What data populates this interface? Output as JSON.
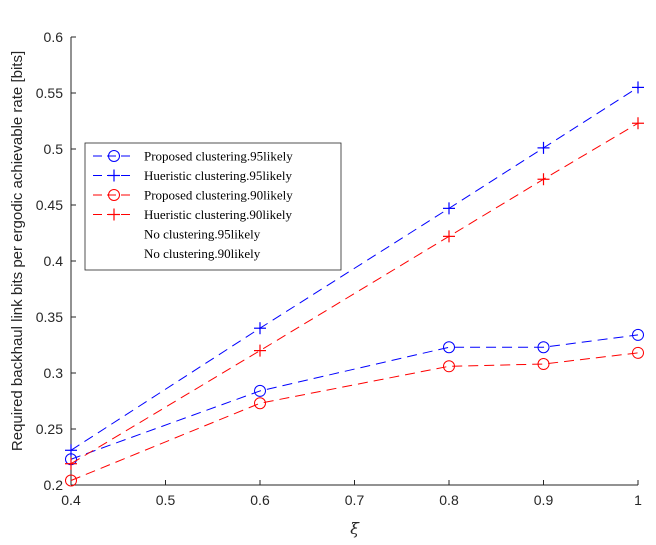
{
  "chart_data": {
    "type": "line",
    "title": "",
    "xlabel": "ξ",
    "ylabel": "Required backhaul link bits per ergodic achievable rate [bits]",
    "xlim": [
      0.4,
      1
    ],
    "ylim": [
      0.2,
      0.6
    ],
    "xticks": [
      "0.4",
      "0.5",
      "0.6",
      "0.7",
      "0.8",
      "0.9",
      "1"
    ],
    "yticks": [
      "0.2",
      "0.25",
      "0.3",
      "0.35",
      "0.4",
      "0.45",
      "0.5",
      "0.55",
      "0.6"
    ],
    "grid": false,
    "legend_position": "upper-left",
    "series": [
      {
        "name": "Proposed clustering.95likely",
        "color": "#0000ff",
        "marker": "circle",
        "dash": true,
        "x": [
          0.4,
          0.6,
          0.8,
          0.9,
          1.0
        ],
        "y": [
          0.223,
          0.284,
          0.323,
          0.323,
          0.334
        ]
      },
      {
        "name": "Hueristic clustering.95likely",
        "color": "#0000ff",
        "marker": "plus",
        "dash": true,
        "x": [
          0.4,
          0.6,
          0.8,
          0.9,
          1.0
        ],
        "y": [
          0.231,
          0.34,
          0.447,
          0.501,
          0.555
        ]
      },
      {
        "name": "Proposed clustering.90likely",
        "color": "#ff0000",
        "marker": "circle",
        "dash": true,
        "x": [
          0.4,
          0.6,
          0.8,
          0.9,
          1.0
        ],
        "y": [
          0.204,
          0.273,
          0.306,
          0.308,
          0.318
        ]
      },
      {
        "name": "Hueristic clustering.90likely",
        "color": "#ff0000",
        "marker": "plus",
        "dash": true,
        "x": [
          0.4,
          0.6,
          0.8,
          0.9,
          1.0
        ],
        "y": [
          0.219,
          0.32,
          0.422,
          0.473,
          0.523
        ]
      },
      {
        "name": "No clustering.95likely",
        "color": "#0000ff",
        "marker": "none",
        "dash": false,
        "x": [],
        "y": []
      },
      {
        "name": "No clustering.90likely",
        "color": "#ff0000",
        "marker": "none",
        "dash": false,
        "x": [],
        "y": []
      }
    ]
  }
}
